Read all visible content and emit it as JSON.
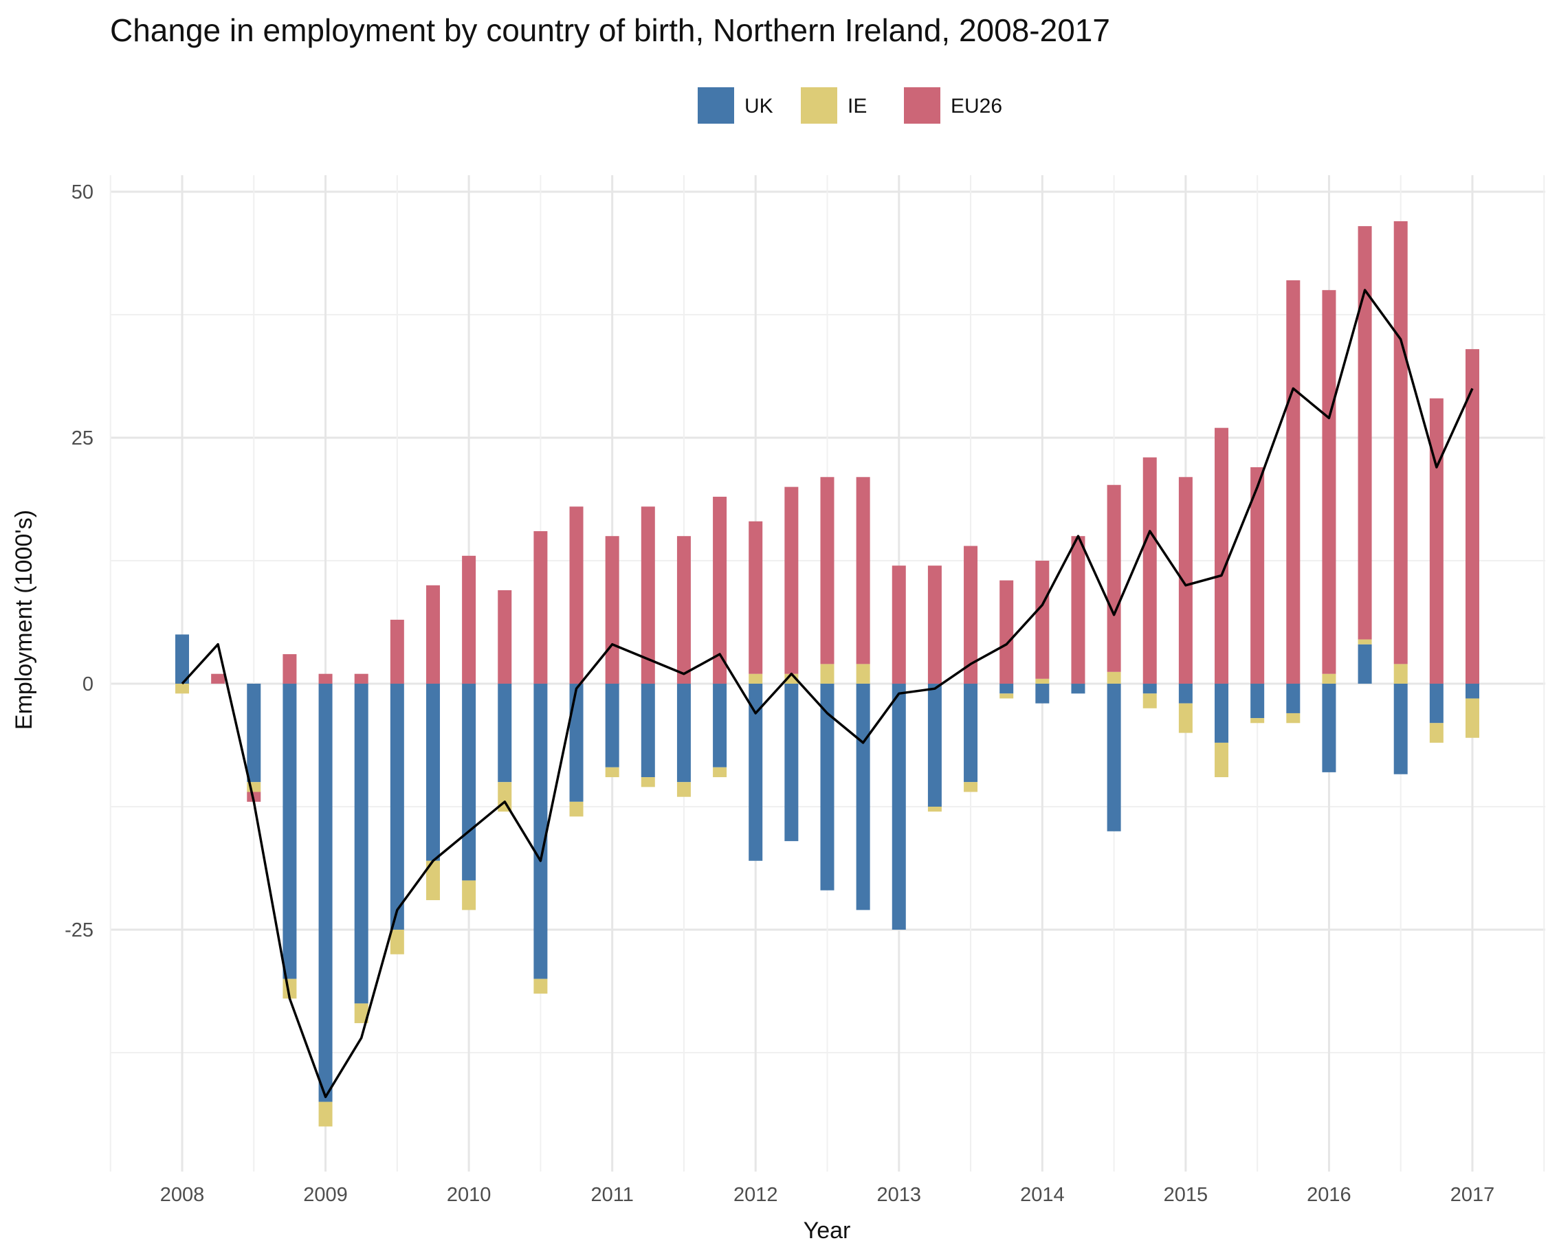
{
  "chart_data": {
    "type": "bar",
    "subtype": "stacked bar with line",
    "title": "Change in employment by country of birth, Northern Ireland, 2008-2017",
    "xlabel": "Year",
    "ylabel": "Employment (1000's)",
    "x_ticks": [
      "2008",
      "2009",
      "2010",
      "2011",
      "2012",
      "2013",
      "2014",
      "2015",
      "2016",
      "2017"
    ],
    "y_ticks": [
      "-25",
      "0",
      "25",
      "50"
    ],
    "ylim": [
      -48,
      52
    ],
    "grid": true,
    "legend": {
      "position": "top",
      "entries": [
        "UK",
        "IE",
        "EU26"
      ]
    },
    "colors": {
      "UK": "#4477aa",
      "IE": "#ddcc77",
      "EU26": "#cc6677",
      "line": "#000000"
    },
    "x": [
      2008.0,
      2008.25,
      2008.5,
      2008.75,
      2009.0,
      2009.25,
      2009.5,
      2009.75,
      2010.0,
      2010.25,
      2010.5,
      2010.75,
      2011.0,
      2011.25,
      2011.5,
      2011.75,
      2012.0,
      2012.25,
      2012.5,
      2012.75,
      2013.0,
      2013.25,
      2013.5,
      2013.75,
      2014.0,
      2014.25,
      2014.5,
      2014.75,
      2015.0,
      2015.25,
      2015.5,
      2015.75,
      2016.0,
      2016.25,
      2016.5,
      2016.75,
      2017.0
    ],
    "series": [
      {
        "name": "UK",
        "values": [
          5,
          0,
          -10,
          -30,
          -42.5,
          -32.5,
          -25,
          -18,
          -20,
          -10,
          -30,
          -12,
          -8.5,
          -9.5,
          -10,
          -8.5,
          -18,
          -16,
          -21,
          -23,
          -25,
          -12.5,
          -10,
          -1,
          -2,
          -1,
          -15,
          -1,
          -2,
          -6,
          -3.5,
          -3,
          -9,
          4,
          -9.2,
          -4,
          -1.5
        ]
      },
      {
        "name": "IE",
        "values": [
          -1,
          0,
          -1,
          -2,
          -2.5,
          -2,
          -2.5,
          -4,
          -3,
          -3,
          -1.5,
          -1.5,
          -1,
          -1,
          -1.5,
          -1,
          1,
          1,
          2,
          2,
          0,
          -0.5,
          -1,
          -0.5,
          0.5,
          0,
          1.2,
          -1.5,
          -3,
          -3.5,
          -0.5,
          -1,
          1,
          0.5,
          2,
          -2,
          -4
        ]
      },
      {
        "name": "EU26",
        "values": [
          0,
          1,
          -1,
          3,
          1,
          1,
          6.5,
          10,
          13,
          9.5,
          15.5,
          18,
          15,
          18,
          15,
          19,
          15.5,
          19,
          19,
          19,
          12,
          12,
          14,
          10.5,
          12,
          15,
          19,
          23,
          21,
          26,
          22,
          41,
          39,
          42,
          45,
          29,
          34
        ]
      },
      {
        "name": "Total",
        "type": "line",
        "values": [
          0,
          4,
          -12,
          -32,
          -42,
          -36,
          -23,
          -18,
          -15,
          -12,
          -18,
          -0.5,
          4,
          2.5,
          1,
          3,
          -3,
          1,
          -3,
          -6,
          -1,
          -0.5,
          2,
          4,
          8,
          15,
          7,
          15.5,
          10,
          11,
          20,
          30,
          27,
          40,
          35,
          22,
          30
        ]
      }
    ]
  }
}
